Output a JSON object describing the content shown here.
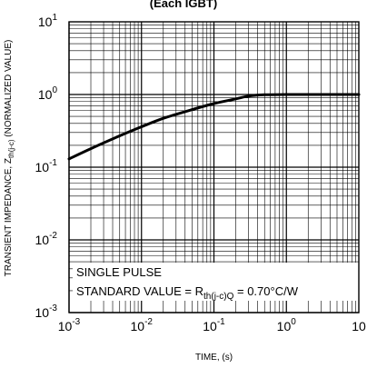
{
  "header": {
    "title": "(Each IGBT)"
  },
  "chart_data": {
    "type": "line",
    "title": "(Each IGBT)",
    "xlabel": "TIME, (s)",
    "ylabel_main": "TRANSIENT IMPEDANCE, Z",
    "ylabel_sub": "th(j-c)",
    "ylabel_tail": " (NORMALIZED VALUE)",
    "xscale": "log",
    "yscale": "log",
    "xlim": [
      0.001,
      10
    ],
    "ylim": [
      0.001,
      10
    ],
    "grid": true,
    "x_ticks": [
      {
        "base": "10",
        "exp": "-3"
      },
      {
        "base": "10",
        "exp": "-2"
      },
      {
        "base": "10",
        "exp": "-1"
      },
      {
        "base": "10",
        "exp": "0"
      },
      {
        "base": "10",
        "exp": ""
      }
    ],
    "y_ticks": [
      {
        "base": "10",
        "exp": "-3"
      },
      {
        "base": "10",
        "exp": "-2"
      },
      {
        "base": "10",
        "exp": "-1"
      },
      {
        "base": "10",
        "exp": "0"
      },
      {
        "base": "10",
        "exp": "1"
      }
    ],
    "annotations": {
      "line1": "SINGLE PULSE",
      "line2_pre": "STANDARD VALUE = R",
      "line2_sub": "th(j-c)Q",
      "line2_post": " = 0.70°C/W"
    },
    "series": [
      {
        "x": [
          0.001,
          0.002,
          0.005,
          0.01,
          0.02,
          0.05,
          0.1,
          0.2,
          0.3,
          0.5,
          1,
          2,
          5,
          10
        ],
        "values": [
          0.13,
          0.18,
          0.27,
          0.36,
          0.47,
          0.62,
          0.75,
          0.87,
          0.95,
          0.99,
          1.0,
          1.0,
          1.0,
          1.0
        ]
      }
    ]
  }
}
